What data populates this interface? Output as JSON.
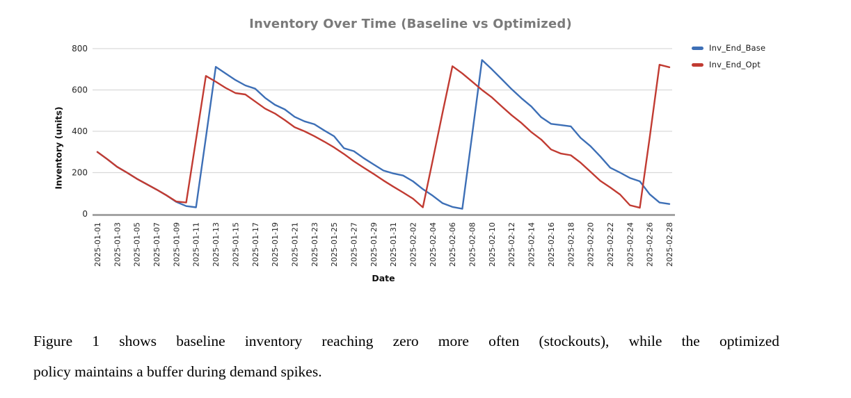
{
  "chart_data": {
    "type": "line",
    "title": "Inventory Over Time (Baseline vs Optimized)",
    "xlabel": "Date",
    "ylabel": "Inventory (units)",
    "ylim": [
      0,
      800
    ],
    "yticks": [
      0,
      200,
      400,
      600,
      800
    ],
    "x_tick_every": 2,
    "grid": true,
    "legend_position": "top-right",
    "x": [
      "2025-01-01",
      "2025-01-02",
      "2025-01-03",
      "2025-01-04",
      "2025-01-05",
      "2025-01-06",
      "2025-01-07",
      "2025-01-08",
      "2025-01-09",
      "2025-01-10",
      "2025-01-11",
      "2025-01-12",
      "2025-01-13",
      "2025-01-14",
      "2025-01-15",
      "2025-01-16",
      "2025-01-17",
      "2025-01-18",
      "2025-01-19",
      "2025-01-20",
      "2025-01-21",
      "2025-01-22",
      "2025-01-23",
      "2025-01-24",
      "2025-01-25",
      "2025-01-26",
      "2025-01-27",
      "2025-01-28",
      "2025-01-29",
      "2025-01-30",
      "2025-01-31",
      "2025-02-01",
      "2025-02-02",
      "2025-02-03",
      "2025-02-04",
      "2025-02-05",
      "2025-02-06",
      "2025-02-07",
      "2025-02-08",
      "2025-02-09",
      "2025-02-10",
      "2025-02-11",
      "2025-02-12",
      "2025-02-13",
      "2025-02-14",
      "2025-02-15",
      "2025-02-16",
      "2025-02-17",
      "2025-02-18",
      "2025-02-19",
      "2025-02-20",
      "2025-02-21",
      "2025-02-22",
      "2025-02-23",
      "2025-02-24",
      "2025-02-25",
      "2025-02-26",
      "2025-02-27",
      "2025-02-28"
    ],
    "series": [
      {
        "name": "Inv_End_Base",
        "color": "#3d6fb6",
        "values": [
          300,
          265,
          228,
          200,
          170,
          144,
          118,
          90,
          58,
          38,
          32,
          370,
          712,
          680,
          648,
          622,
          606,
          562,
          528,
          506,
          470,
          448,
          434,
          404,
          376,
          318,
          304,
          270,
          240,
          210,
          196,
          186,
          158,
          120,
          88,
          52,
          34,
          25,
          385,
          745,
          700,
          652,
          604,
          560,
          520,
          468,
          436,
          430,
          424,
          368,
          328,
          278,
          224,
          200,
          174,
          158,
          95,
          55,
          48
        ]
      },
      {
        "name": "Inv_End_Opt",
        "color": "#c13b32",
        "values": [
          300,
          265,
          228,
          200,
          170,
          144,
          118,
          90,
          60,
          55,
          360,
          668,
          640,
          610,
          585,
          578,
          544,
          510,
          486,
          454,
          420,
          400,
          376,
          350,
          322,
          290,
          255,
          224,
          194,
          162,
          132,
          104,
          74,
          32,
          260,
          490,
          715,
          680,
          640,
          600,
          564,
          520,
          478,
          440,
          396,
          360,
          312,
          292,
          284,
          248,
          204,
          160,
          128,
          94,
          42,
          30,
          370,
          722,
          710
        ]
      }
    ],
    "grid_color": "#d9d9d9",
    "axis_line_color": "#a3a3a3",
    "title_color": "#7a7a7a"
  },
  "caption": {
    "lines": [
      "Figure 1 shows baseline inventory reaching zero more often (stockouts), while the optimized",
      "policy maintains a buffer during demand spikes."
    ]
  }
}
